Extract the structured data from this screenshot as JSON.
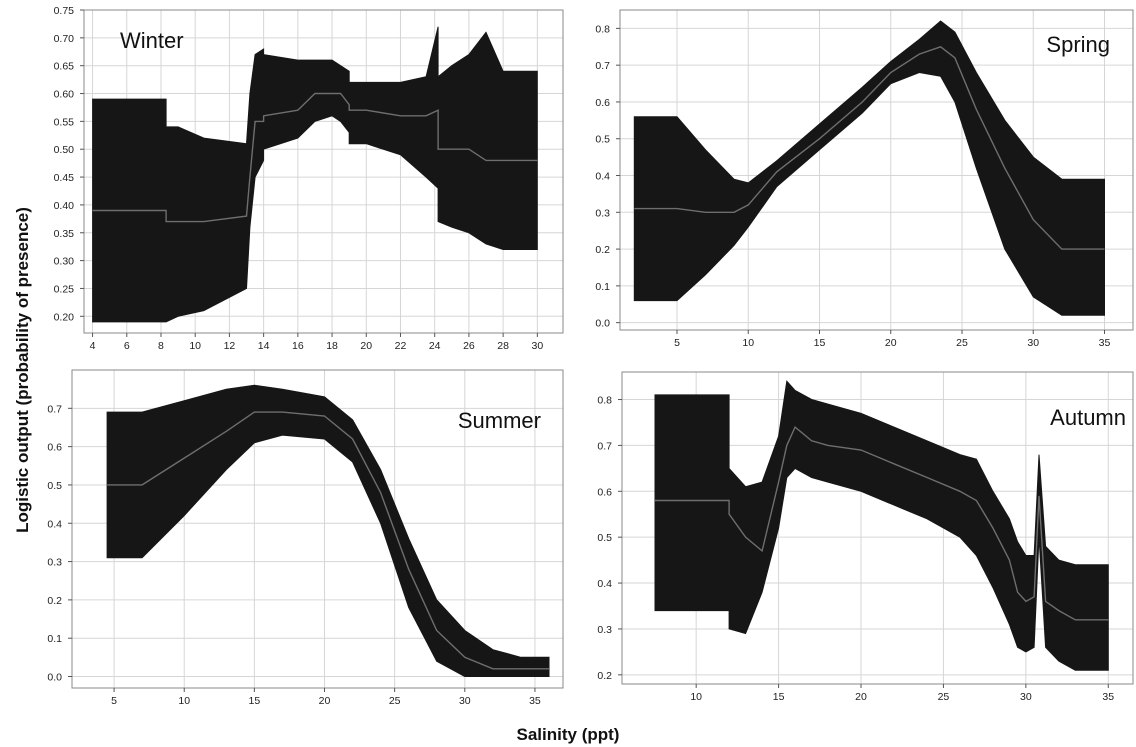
{
  "figure": {
    "ylabel": "Logistic output (probability of presence)",
    "xlabel": "Salinity (ppt)"
  },
  "colors": {
    "band": "#161616",
    "mean_line": "#6e6e6e",
    "grid": "#d6d6d6",
    "frame": "#8a8a8a"
  },
  "chart_data": [
    {
      "type": "area",
      "title": "Winter",
      "xlim": [
        3.5,
        31.5
      ],
      "ylim": [
        0.17,
        0.75
      ],
      "xticks": [
        4,
        6,
        8,
        10,
        12,
        14,
        16,
        18,
        20,
        22,
        24,
        26,
        28,
        30
      ],
      "yticks": [
        0.2,
        0.25,
        0.3,
        0.35,
        0.4,
        0.45,
        0.5,
        0.55,
        0.6,
        0.65,
        0.7,
        0.75
      ],
      "ytick_labels": [
        "0.20",
        "0.25",
        "0.30",
        "0.35",
        "0.40",
        "0.45",
        "0.50",
        "0.55",
        "0.60",
        "0.65",
        "0.70",
        "0.75"
      ],
      "grid": true,
      "series": [
        {
          "x": [
            4,
            8.3,
            8.3,
            9,
            9,
            10.5,
            10.5,
            13,
            13.2,
            13.5,
            14,
            14,
            16,
            17,
            18,
            18.5,
            19,
            19,
            20,
            22,
            23.5,
            24.2,
            24.2,
            25,
            26,
            27,
            28,
            30
          ],
          "values": [
            0.39,
            0.39,
            0.37,
            0.37,
            0.37,
            0.37,
            0.37,
            0.38,
            0.45,
            0.55,
            0.55,
            0.56,
            0.57,
            0.6,
            0.6,
            0.6,
            0.58,
            0.57,
            0.57,
            0.56,
            0.56,
            0.57,
            0.5,
            0.5,
            0.5,
            0.48,
            0.48,
            0.48
          ]
        },
        {
          "x": [
            4,
            8.3,
            8.3,
            9,
            9,
            10.5,
            10.5,
            13,
            13.2,
            13.5,
            14,
            14,
            16,
            17,
            18,
            18.5,
            19,
            19,
            20,
            22,
            23.5,
            24.2,
            24.2,
            25,
            26,
            27,
            28,
            30
          ],
          "values": [
            0.59,
            0.59,
            0.54,
            0.54,
            0.54,
            0.52,
            0.52,
            0.51,
            0.6,
            0.67,
            0.68,
            0.67,
            0.66,
            0.66,
            0.66,
            0.65,
            0.64,
            0.62,
            0.62,
            0.62,
            0.63,
            0.72,
            0.63,
            0.65,
            0.67,
            0.71,
            0.64,
            0.64
          ]
        },
        {
          "x": [
            4,
            8.3,
            8.3,
            9,
            9,
            10.5,
            10.5,
            13,
            13.2,
            13.5,
            14,
            14,
            16,
            17,
            18,
            18.5,
            19,
            19,
            20,
            22,
            23.5,
            24.2,
            24.2,
            25,
            26,
            27,
            28,
            30
          ],
          "values": [
            0.19,
            0.19,
            0.19,
            0.2,
            0.2,
            0.21,
            0.21,
            0.25,
            0.36,
            0.45,
            0.48,
            0.5,
            0.52,
            0.55,
            0.56,
            0.55,
            0.53,
            0.51,
            0.51,
            0.49,
            0.45,
            0.43,
            0.37,
            0.36,
            0.35,
            0.33,
            0.32,
            0.32
          ]
        }
      ]
    },
    {
      "type": "area",
      "title": "Spring",
      "xlim": [
        1,
        37
      ],
      "ylim": [
        -0.02,
        0.85
      ],
      "xticks": [
        5,
        10,
        15,
        20,
        25,
        30,
        35
      ],
      "yticks": [
        0,
        0.1,
        0.2,
        0.3,
        0.4,
        0.5,
        0.6,
        0.7,
        0.8
      ],
      "ytick_labels": [
        "0.0",
        "0.1",
        "0.2",
        "0.3",
        "0.4",
        "0.5",
        "0.6",
        "0.7",
        "0.8"
      ],
      "grid": true,
      "series": [
        {
          "x": [
            2,
            5,
            7,
            9,
            10,
            12,
            15,
            18,
            20,
            22,
            23.5,
            24.5,
            26,
            28,
            30,
            32,
            35
          ],
          "values": [
            0.31,
            0.31,
            0.3,
            0.3,
            0.32,
            0.41,
            0.5,
            0.6,
            0.68,
            0.73,
            0.75,
            0.72,
            0.58,
            0.42,
            0.28,
            0.2,
            0.2
          ]
        },
        {
          "x": [
            2,
            5,
            7,
            9,
            10,
            12,
            15,
            18,
            20,
            22,
            23.5,
            24.5,
            26,
            28,
            30,
            32,
            35
          ],
          "values": [
            0.56,
            0.56,
            0.47,
            0.39,
            0.38,
            0.44,
            0.54,
            0.64,
            0.71,
            0.77,
            0.82,
            0.79,
            0.68,
            0.55,
            0.45,
            0.39,
            0.39
          ]
        },
        {
          "x": [
            2,
            5,
            7,
            9,
            10,
            12,
            15,
            18,
            20,
            22,
            23.5,
            24.5,
            26,
            28,
            30,
            32,
            35
          ],
          "values": [
            0.06,
            0.06,
            0.13,
            0.21,
            0.26,
            0.37,
            0.47,
            0.57,
            0.65,
            0.68,
            0.67,
            0.6,
            0.42,
            0.2,
            0.07,
            0.02,
            0.02
          ]
        }
      ]
    },
    {
      "type": "area",
      "title": "Summer",
      "xlim": [
        2,
        37
      ],
      "ylim": [
        -0.03,
        0.8
      ],
      "xticks": [
        5,
        10,
        15,
        20,
        25,
        30,
        35
      ],
      "yticks": [
        0,
        0.1,
        0.2,
        0.3,
        0.4,
        0.5,
        0.6,
        0.7
      ],
      "ytick_labels": [
        "0.0",
        "0.1",
        "0.2",
        "0.3",
        "0.4",
        "0.5",
        "0.6",
        "0.7"
      ],
      "grid": true,
      "series": [
        {
          "x": [
            4.5,
            7,
            10,
            13,
            15,
            17,
            20,
            22,
            24,
            26,
            28,
            30,
            32,
            34,
            36
          ],
          "values": [
            0.5,
            0.5,
            0.57,
            0.64,
            0.69,
            0.69,
            0.68,
            0.62,
            0.48,
            0.28,
            0.12,
            0.05,
            0.02,
            0.02,
            0.02
          ]
        },
        {
          "x": [
            4.5,
            7,
            10,
            13,
            15,
            17,
            20,
            22,
            24,
            26,
            28,
            30,
            32,
            34,
            36
          ],
          "values": [
            0.69,
            0.69,
            0.72,
            0.75,
            0.76,
            0.75,
            0.73,
            0.67,
            0.54,
            0.36,
            0.2,
            0.12,
            0.07,
            0.05,
            0.05
          ]
        },
        {
          "x": [
            4.5,
            7,
            10,
            13,
            15,
            17,
            20,
            22,
            24,
            26,
            28,
            30,
            32,
            34,
            36
          ],
          "values": [
            0.31,
            0.31,
            0.42,
            0.54,
            0.61,
            0.63,
            0.62,
            0.56,
            0.4,
            0.18,
            0.04,
            0,
            0,
            0,
            0
          ]
        }
      ]
    },
    {
      "type": "area",
      "title": "Autumn",
      "xlim": [
        5.5,
        36.5
      ],
      "ylim": [
        0.18,
        0.86
      ],
      "xticks": [
        10,
        15,
        20,
        25,
        30,
        35
      ],
      "yticks": [
        0.2,
        0.3,
        0.4,
        0.5,
        0.6,
        0.7,
        0.8
      ],
      "ytick_labels": [
        "0.2",
        "0.3",
        "0.4",
        "0.5",
        "0.6",
        "0.7",
        "0.8"
      ],
      "grid": true,
      "series": [
        {
          "x": [
            7.5,
            12,
            12,
            13,
            14,
            15,
            15.5,
            16,
            17,
            18,
            20,
            22,
            24,
            26,
            27,
            28,
            29,
            29.5,
            30,
            30.5,
            30.8,
            31.2,
            32,
            33,
            35
          ],
          "values": [
            0.58,
            0.58,
            0.55,
            0.5,
            0.47,
            0.62,
            0.7,
            0.74,
            0.71,
            0.7,
            0.69,
            0.66,
            0.63,
            0.6,
            0.58,
            0.52,
            0.45,
            0.38,
            0.36,
            0.37,
            0.59,
            0.36,
            0.34,
            0.32,
            0.32
          ]
        },
        {
          "x": [
            7.5,
            12,
            12,
            13,
            14,
            15,
            15.5,
            16,
            17,
            18,
            20,
            22,
            24,
            26,
            27,
            28,
            29,
            29.5,
            30,
            30.5,
            30.8,
            31.2,
            32,
            33,
            35
          ],
          "values": [
            0.81,
            0.81,
            0.65,
            0.61,
            0.62,
            0.72,
            0.84,
            0.82,
            0.8,
            0.79,
            0.77,
            0.74,
            0.71,
            0.68,
            0.67,
            0.6,
            0.54,
            0.49,
            0.46,
            0.46,
            0.68,
            0.48,
            0.45,
            0.44,
            0.44
          ]
        },
        {
          "x": [
            7.5,
            12,
            12,
            13,
            14,
            15,
            15.5,
            16,
            17,
            18,
            20,
            22,
            24,
            26,
            27,
            28,
            29,
            29.5,
            30,
            30.5,
            30.8,
            31.2,
            32,
            33,
            35
          ],
          "values": [
            0.34,
            0.34,
            0.3,
            0.29,
            0.38,
            0.52,
            0.63,
            0.65,
            0.63,
            0.62,
            0.6,
            0.57,
            0.54,
            0.5,
            0.46,
            0.39,
            0.31,
            0.26,
            0.25,
            0.26,
            0.5,
            0.26,
            0.23,
            0.21,
            0.21
          ]
        }
      ]
    }
  ]
}
